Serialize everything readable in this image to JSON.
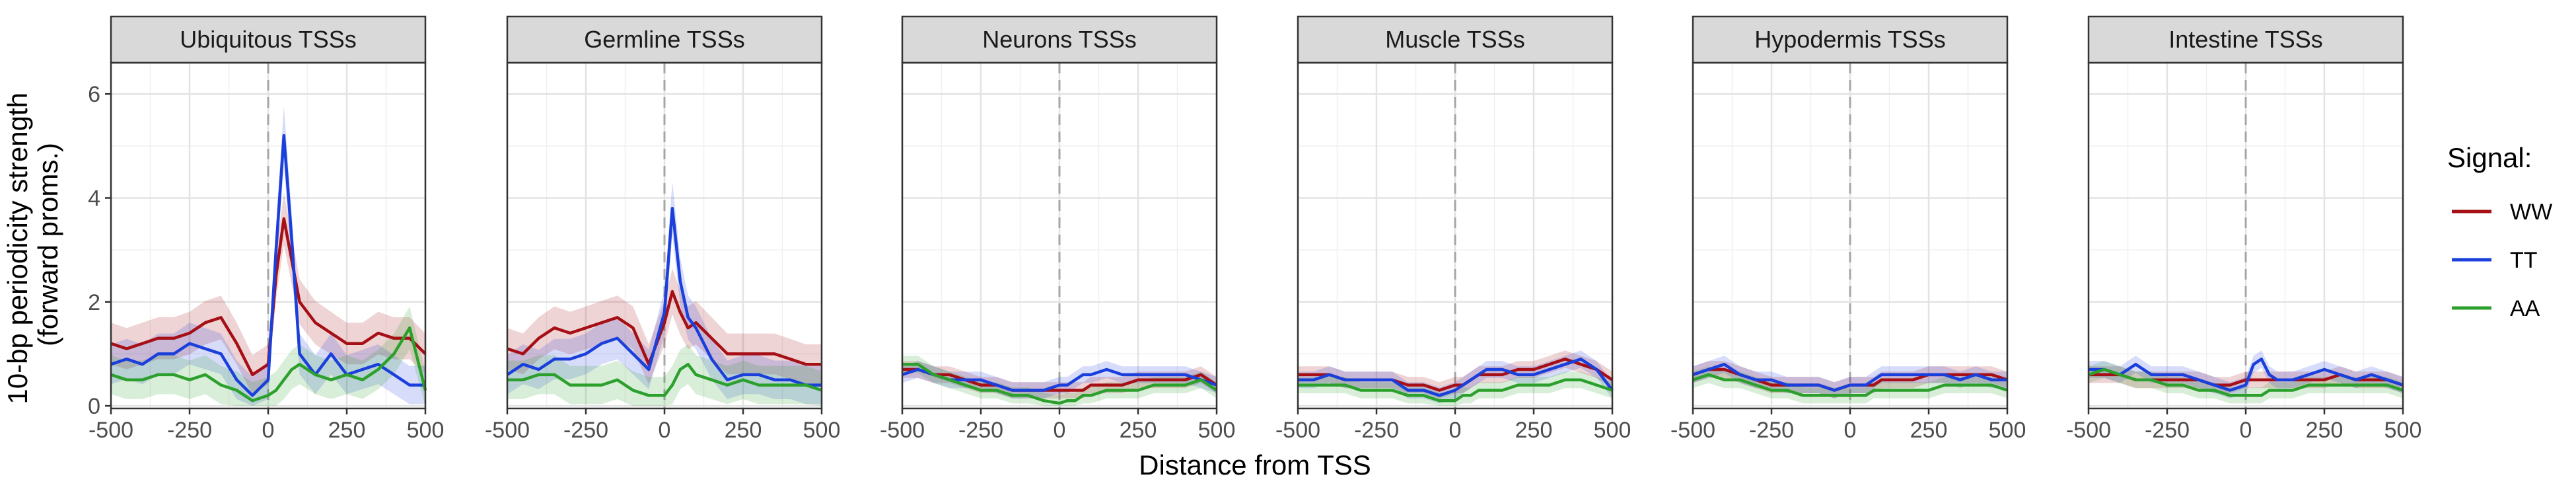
{
  "chart_data": {
    "type": "line",
    "xlabel": "Distance from TSS",
    "ylabel_lines": [
      "10-bp periodicity strength",
      "(forward proms.)"
    ],
    "xlim": [
      -500,
      500
    ],
    "ylim": [
      -0.05,
      6.6
    ],
    "x_ticks": [
      -500,
      -250,
      0,
      250,
      500
    ],
    "x_tick_labels": [
      "-500",
      "-250",
      "0",
      "250",
      "500"
    ],
    "y_ticks": [
      0,
      2,
      4,
      6
    ],
    "y_tick_labels": [
      "0",
      "2",
      "4",
      "6"
    ],
    "grid": true,
    "vline_x": 0,
    "legend": {
      "title": "Signal:",
      "placement": "right",
      "entries": [
        {
          "name": "WW",
          "color": "#a50f15"
        },
        {
          "name": "TT",
          "color": "#1a3fdb"
        },
        {
          "name": "AA",
          "color": "#2ca02c"
        }
      ]
    },
    "x": [
      -500,
      -450,
      -400,
      -350,
      -300,
      -250,
      -200,
      -150,
      -100,
      -50,
      0,
      25,
      50,
      75,
      100,
      150,
      200,
      250,
      300,
      350,
      400,
      450,
      500
    ],
    "facets": [
      {
        "title": "Ubiquitous TSSs",
        "band": 0.35,
        "series": [
          {
            "name": "WW",
            "values": [
              1.2,
              1.1,
              1.2,
              1.3,
              1.3,
              1.4,
              1.6,
              1.7,
              1.2,
              0.6,
              0.8,
              2.5,
              3.6,
              2.8,
              2.0,
              1.6,
              1.4,
              1.2,
              1.2,
              1.4,
              1.3,
              1.3,
              1.0
            ]
          },
          {
            "name": "TT",
            "values": [
              0.8,
              0.9,
              0.8,
              1.0,
              1.0,
              1.2,
              1.1,
              1.0,
              0.5,
              0.2,
              0.5,
              3.0,
              5.2,
              3.2,
              1.0,
              0.6,
              1.0,
              0.6,
              0.7,
              0.8,
              0.6,
              0.4,
              0.4
            ]
          },
          {
            "name": "AA",
            "values": [
              0.6,
              0.5,
              0.5,
              0.6,
              0.6,
              0.5,
              0.6,
              0.4,
              0.3,
              0.1,
              0.2,
              0.3,
              0.5,
              0.7,
              0.8,
              0.6,
              0.5,
              0.6,
              0.5,
              0.7,
              1.0,
              1.5,
              0.3
            ]
          }
        ]
      },
      {
        "title": "Germline TSSs",
        "band": 0.35,
        "series": [
          {
            "name": "WW",
            "values": [
              1.1,
              1.0,
              1.3,
              1.5,
              1.4,
              1.5,
              1.6,
              1.7,
              1.5,
              0.8,
              1.6,
              2.2,
              1.8,
              1.5,
              1.6,
              1.3,
              1.0,
              1.0,
              1.0,
              1.0,
              0.9,
              0.8,
              0.8
            ]
          },
          {
            "name": "TT",
            "values": [
              0.6,
              0.8,
              0.7,
              0.9,
              0.9,
              1.0,
              1.2,
              1.3,
              1.0,
              0.7,
              1.8,
              3.8,
              2.4,
              1.7,
              1.5,
              0.9,
              0.5,
              0.6,
              0.6,
              0.5,
              0.5,
              0.4,
              0.4
            ]
          },
          {
            "name": "AA",
            "values": [
              0.5,
              0.5,
              0.6,
              0.6,
              0.4,
              0.4,
              0.4,
              0.5,
              0.3,
              0.2,
              0.2,
              0.4,
              0.7,
              0.8,
              0.6,
              0.5,
              0.4,
              0.5,
              0.4,
              0.4,
              0.4,
              0.4,
              0.3
            ]
          }
        ]
      },
      {
        "title": "Neurons TSSs",
        "band": 0.15,
        "series": [
          {
            "name": "WW",
            "values": [
              0.7,
              0.7,
              0.6,
              0.6,
              0.5,
              0.4,
              0.4,
              0.3,
              0.3,
              0.3,
              0.3,
              0.3,
              0.3,
              0.3,
              0.4,
              0.4,
              0.4,
              0.5,
              0.5,
              0.5,
              0.5,
              0.6,
              0.4
            ]
          },
          {
            "name": "TT",
            "values": [
              0.6,
              0.7,
              0.6,
              0.5,
              0.5,
              0.5,
              0.4,
              0.3,
              0.3,
              0.3,
              0.4,
              0.4,
              0.5,
              0.6,
              0.6,
              0.7,
              0.6,
              0.6,
              0.6,
              0.6,
              0.6,
              0.5,
              0.4
            ]
          },
          {
            "name": "AA",
            "values": [
              0.8,
              0.8,
              0.6,
              0.5,
              0.4,
              0.3,
              0.3,
              0.2,
              0.2,
              0.1,
              0.05,
              0.1,
              0.1,
              0.2,
              0.2,
              0.3,
              0.3,
              0.3,
              0.4,
              0.4,
              0.4,
              0.5,
              0.3
            ]
          }
        ]
      },
      {
        "title": "Muscle TSSs",
        "band": 0.15,
        "series": [
          {
            "name": "WW",
            "values": [
              0.6,
              0.6,
              0.6,
              0.5,
              0.5,
              0.5,
              0.5,
              0.4,
              0.4,
              0.3,
              0.4,
              0.4,
              0.5,
              0.6,
              0.6,
              0.6,
              0.7,
              0.7,
              0.8,
              0.9,
              0.8,
              0.7,
              0.5
            ]
          },
          {
            "name": "TT",
            "values": [
              0.5,
              0.5,
              0.6,
              0.5,
              0.5,
              0.5,
              0.5,
              0.3,
              0.3,
              0.2,
              0.3,
              0.4,
              0.5,
              0.6,
              0.7,
              0.7,
              0.6,
              0.6,
              0.7,
              0.8,
              0.9,
              0.7,
              0.3
            ]
          },
          {
            "name": "AA",
            "values": [
              0.4,
              0.4,
              0.4,
              0.4,
              0.3,
              0.3,
              0.3,
              0.2,
              0.2,
              0.1,
              0.1,
              0.2,
              0.2,
              0.3,
              0.3,
              0.3,
              0.4,
              0.4,
              0.4,
              0.5,
              0.5,
              0.4,
              0.3
            ]
          }
        ]
      },
      {
        "title": "Hypodermis TSSs",
        "band": 0.15,
        "series": [
          {
            "name": "WW",
            "values": [
              0.6,
              0.7,
              0.7,
              0.6,
              0.5,
              0.4,
              0.4,
              0.4,
              0.4,
              0.3,
              0.4,
              0.4,
              0.4,
              0.4,
              0.5,
              0.5,
              0.5,
              0.6,
              0.6,
              0.6,
              0.6,
              0.6,
              0.5
            ]
          },
          {
            "name": "TT",
            "values": [
              0.6,
              0.7,
              0.8,
              0.6,
              0.5,
              0.5,
              0.4,
              0.4,
              0.4,
              0.3,
              0.4,
              0.4,
              0.4,
              0.5,
              0.6,
              0.6,
              0.6,
              0.6,
              0.6,
              0.5,
              0.6,
              0.5,
              0.5
            ]
          },
          {
            "name": "AA",
            "values": [
              0.5,
              0.6,
              0.5,
              0.5,
              0.4,
              0.3,
              0.3,
              0.2,
              0.2,
              0.2,
              0.2,
              0.2,
              0.2,
              0.3,
              0.3,
              0.3,
              0.3,
              0.3,
              0.4,
              0.4,
              0.4,
              0.4,
              0.3
            ]
          }
        ]
      },
      {
        "title": "Intestine TSSs",
        "band": 0.15,
        "series": [
          {
            "name": "WW",
            "values": [
              0.6,
              0.6,
              0.6,
              0.5,
              0.5,
              0.5,
              0.5,
              0.5,
              0.4,
              0.4,
              0.5,
              0.5,
              0.5,
              0.5,
              0.5,
              0.5,
              0.5,
              0.5,
              0.6,
              0.5,
              0.5,
              0.5,
              0.4
            ]
          },
          {
            "name": "TT",
            "values": [
              0.7,
              0.7,
              0.6,
              0.8,
              0.6,
              0.6,
              0.6,
              0.5,
              0.4,
              0.3,
              0.4,
              0.8,
              0.9,
              0.6,
              0.5,
              0.5,
              0.6,
              0.7,
              0.6,
              0.5,
              0.6,
              0.5,
              0.4
            ]
          },
          {
            "name": "AA",
            "values": [
              0.6,
              0.7,
              0.6,
              0.5,
              0.5,
              0.4,
              0.4,
              0.3,
              0.3,
              0.2,
              0.2,
              0.2,
              0.2,
              0.3,
              0.3,
              0.3,
              0.4,
              0.4,
              0.4,
              0.4,
              0.4,
              0.4,
              0.3
            ]
          }
        ]
      }
    ]
  }
}
